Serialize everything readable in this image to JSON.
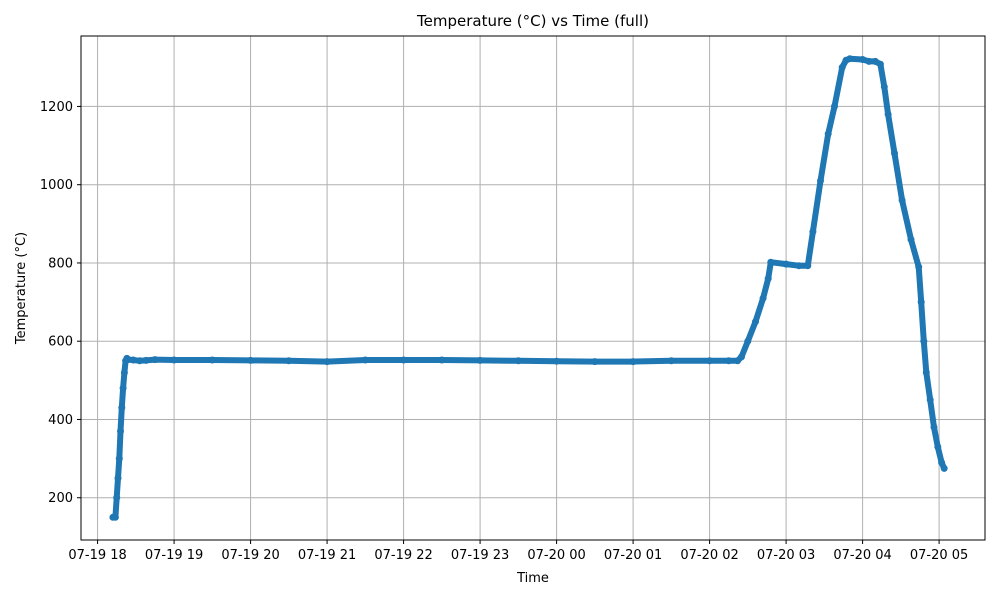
{
  "chart_data": {
    "type": "scatter",
    "title": "Temperature (°C) vs Time (full)",
    "xlabel": "Time",
    "ylabel": "Temperature (°C)",
    "grid": true,
    "legend": "none",
    "color": "#1f77b4",
    "xlim": [
      "07-19 17:47",
      "07-20 05:36"
    ],
    "ylim": [
      92,
      1380
    ],
    "x_ticks": [
      "07-19 18",
      "07-19 19",
      "07-19 20",
      "07-19 21",
      "07-19 22",
      "07-19 23",
      "07-20 00",
      "07-20 01",
      "07-20 02",
      "07-20 03",
      "07-20 04",
      "07-20 05"
    ],
    "y_ticks": [
      200,
      400,
      600,
      800,
      1000,
      1200
    ],
    "series": [
      {
        "x": [
          "07-19 18:12",
          "07-19 18:14",
          "07-19 18:15",
          "07-19 18:16",
          "07-19 18:17",
          "07-19 18:18",
          "07-19 18:19",
          "07-19 18:20",
          "07-19 18:21",
          "07-19 18:22",
          "07-19 18:23",
          "07-19 18:24",
          "07-19 18:28",
          "07-19 18:33",
          "07-19 18:38",
          "07-19 18:45",
          "07-19 19:00",
          "07-19 19:30",
          "07-19 20:00",
          "07-19 20:30",
          "07-19 21:00",
          "07-19 21:30",
          "07-19 22:00",
          "07-19 22:30",
          "07-19 23:00",
          "07-19 23:30",
          "07-20 00:00",
          "07-20 00:30",
          "07-20 01:00",
          "07-20 01:30",
          "07-20 02:00",
          "07-20 02:15",
          "07-20 02:22",
          "07-20 02:25",
          "07-20 02:30",
          "07-20 02:36",
          "07-20 02:42",
          "07-20 02:46",
          "07-20 02:48",
          "07-20 03:00",
          "07-20 03:10",
          "07-20 03:17",
          "07-20 03:21",
          "07-20 03:27",
          "07-20 03:33",
          "07-20 03:38",
          "07-20 03:44",
          "07-20 03:47",
          "07-20 03:50",
          "07-20 04:00",
          "07-20 04:05",
          "07-20 04:10",
          "07-20 04:14",
          "07-20 04:17",
          "07-20 04:20",
          "07-20 04:25",
          "07-20 04:31",
          "07-20 04:38",
          "07-20 04:44",
          "07-20 04:46",
          "07-20 04:48",
          "07-20 04:50",
          "07-20 04:53",
          "07-20 04:56",
          "07-20 04:59",
          "07-20 05:02",
          "07-20 05:04"
        ],
        "values": [
          150,
          150,
          200,
          250,
          300,
          370,
          430,
          480,
          520,
          550,
          556,
          553,
          552,
          550,
          551,
          553,
          552,
          552,
          551,
          550,
          548,
          552,
          552,
          552,
          551,
          550,
          549,
          548,
          548,
          550,
          550,
          550,
          550,
          560,
          600,
          650,
          710,
          760,
          802,
          797,
          793,
          793,
          880,
          1010,
          1130,
          1200,
          1300,
          1318,
          1322,
          1320,
          1315,
          1315,
          1308,
          1250,
          1180,
          1080,
          960,
          860,
          790,
          700,
          600,
          520,
          450,
          380,
          330,
          290,
          275
        ]
      }
    ]
  }
}
